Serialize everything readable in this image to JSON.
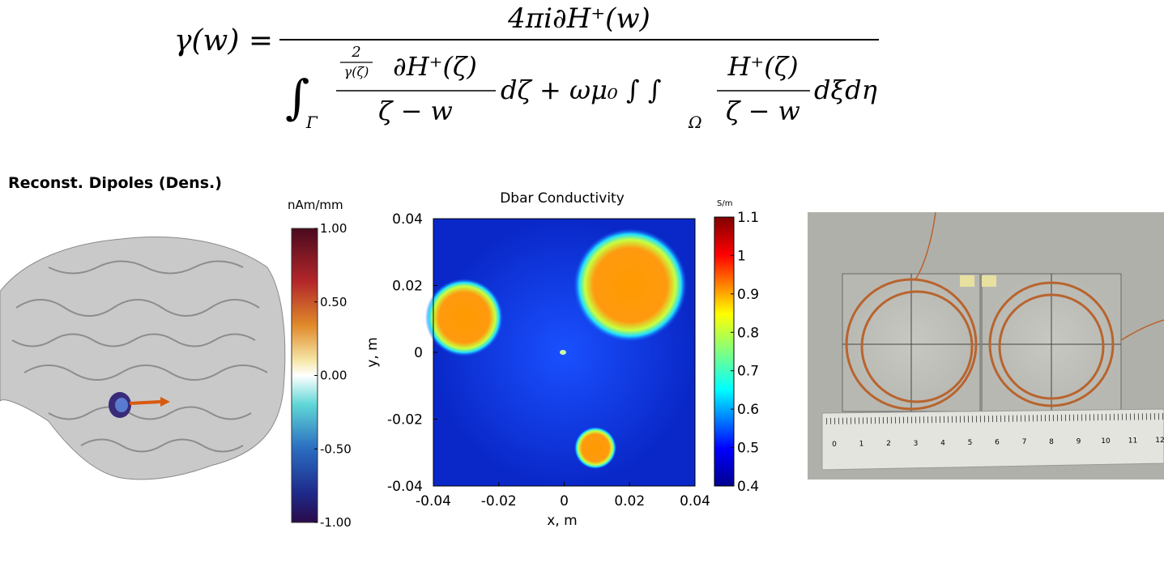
{
  "formula": {
    "lhs": "γ(w) =",
    "numerator": "4πi∂H⁺(w)",
    "int1": "∫",
    "int1_sub": "Γ",
    "frac1_coef_num": "2",
    "frac1_coef_den": "γ(ζ)",
    "frac1_num": "∂H⁺(ζ)",
    "frac1_den": "ζ − w",
    "middle": "dζ + ωμ₀ ∫ ∫",
    "int2_sub": "Ω",
    "frac2_num": "H⁺(ζ)",
    "frac2_den": "ζ − w",
    "tail": "dξdη"
  },
  "dipoles": {
    "title": "Reconst. Dipoles (Dens.)",
    "colorbar_unit": "nAm/mm",
    "colorbar_labels": [
      "1.00",
      "0.50",
      "0.00",
      "-0.50",
      "-1.00"
    ]
  },
  "dbar": {
    "title": "Dbar Conductivity",
    "xlabel": "x, m",
    "ylabel": "y, m",
    "xlim": [
      -0.04,
      0.04
    ],
    "ylim": [
      -0.04,
      0.04
    ],
    "xticks": [
      -0.04,
      -0.02,
      0,
      0.02,
      0.04
    ],
    "yticks": [
      -0.04,
      -0.02,
      0,
      0.02,
      0.04
    ],
    "colorbar_unit": "S/m",
    "clim": [
      0.4,
      1.1
    ],
    "colorbar_ticks": [
      0.4,
      0.5,
      0.6,
      0.7,
      0.8,
      0.9,
      1,
      1.1
    ]
  },
  "photo": {
    "ruler_labels": [
      0,
      1,
      2,
      3,
      4,
      5,
      6,
      7,
      8,
      9,
      10,
      11,
      12
    ]
  }
}
